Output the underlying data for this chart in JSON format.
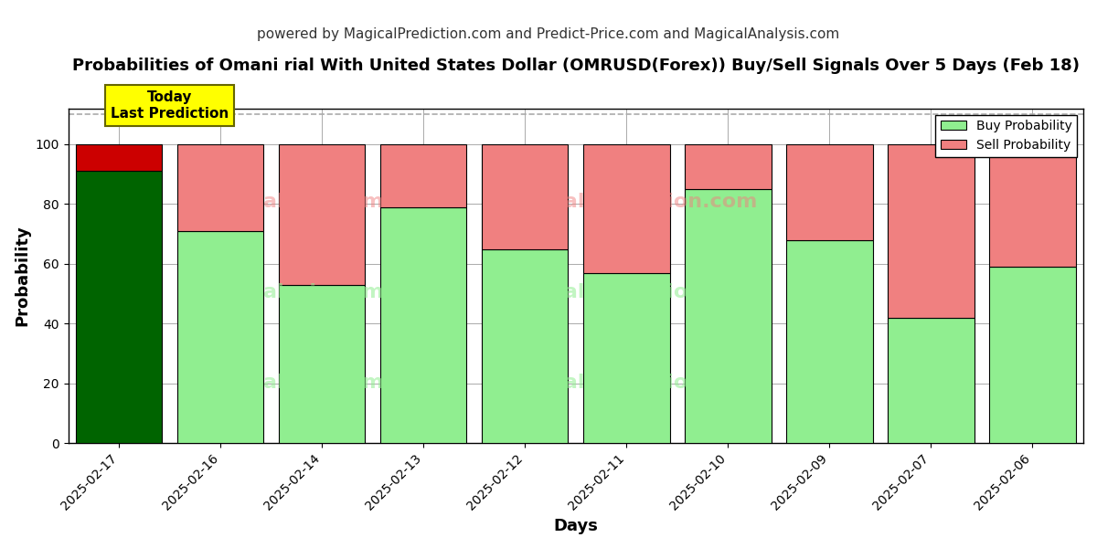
{
  "title": "Probabilities of Omani rial With United States Dollar (OMRUSD(Forex)) Buy/Sell Signals Over 5 Days (Feb 18)",
  "subtitle": "powered by MagicalPrediction.com and Predict-Price.com and MagicalAnalysis.com",
  "xlabel": "Days",
  "ylabel": "Probability",
  "categories": [
    "2025-02-17",
    "2025-02-16",
    "2025-02-14",
    "2025-02-13",
    "2025-02-12",
    "2025-02-11",
    "2025-02-10",
    "2025-02-09",
    "2025-02-07",
    "2025-02-06"
  ],
  "buy_values": [
    91,
    71,
    53,
    79,
    65,
    57,
    85,
    68,
    42,
    59
  ],
  "sell_values": [
    9,
    29,
    47,
    21,
    35,
    43,
    15,
    32,
    58,
    41
  ],
  "today_index": 0,
  "today_buy_color": "#006400",
  "today_sell_color": "#cc0000",
  "buy_color": "#90ee90",
  "sell_color": "#f08080",
  "today_label_bg": "#ffff00",
  "today_label_text": "Today\nLast Prediction",
  "bar_edge_color": "#000000",
  "ylim": [
    0,
    112
  ],
  "yticks": [
    0,
    20,
    40,
    60,
    80,
    100
  ],
  "legend_buy": "Buy Probability",
  "legend_sell": "Sell Probability",
  "grid_color": "#aaaaaa",
  "bg_color": "#ffffff",
  "title_fontsize": 13,
  "subtitle_fontsize": 11,
  "axis_label_fontsize": 13,
  "tick_fontsize": 10,
  "bar_width": 0.85
}
